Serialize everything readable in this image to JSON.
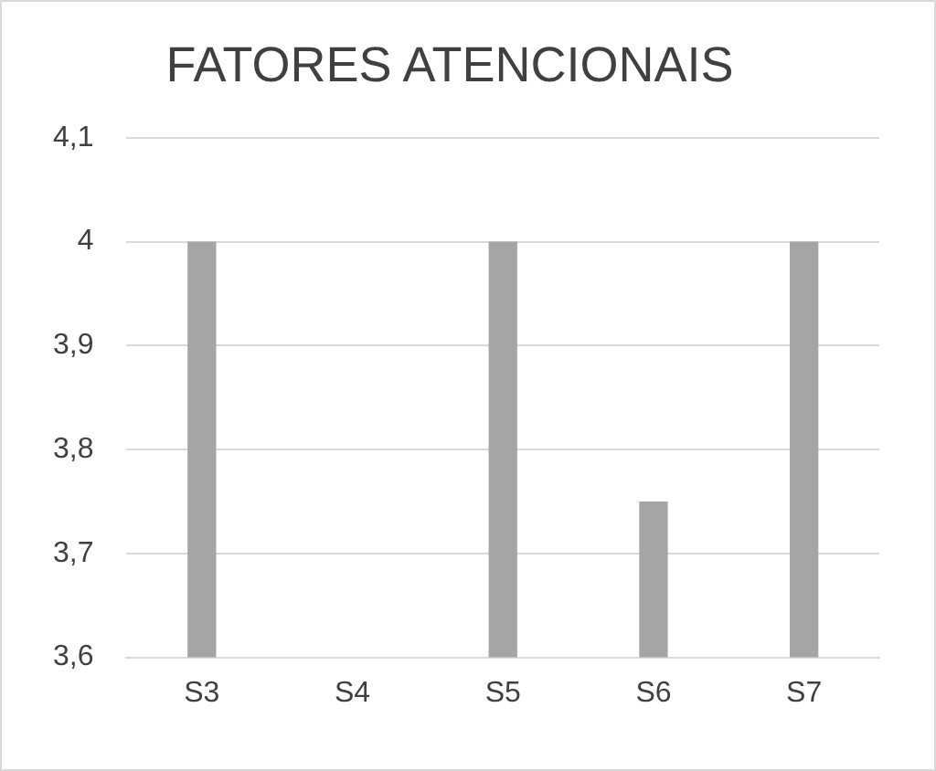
{
  "chart_data": {
    "type": "bar",
    "title": "FATORES ATENCIONAIS",
    "categories": [
      "S3",
      "S4",
      "S5",
      "S6",
      "S7"
    ],
    "values": [
      4,
      null,
      4,
      3.75,
      4
    ],
    "color": "#a5a5a5",
    "ylim": [
      3.6,
      4.1
    ],
    "yticks": [
      {
        "value": 3.6,
        "label": "3,6"
      },
      {
        "value": 3.7,
        "label": "3,7"
      },
      {
        "value": 3.8,
        "label": "3,8"
      },
      {
        "value": 3.9,
        "label": "3,9"
      },
      4,
      {
        "value": 4.1,
        "label": "4,1"
      }
    ],
    "grid": "y"
  }
}
